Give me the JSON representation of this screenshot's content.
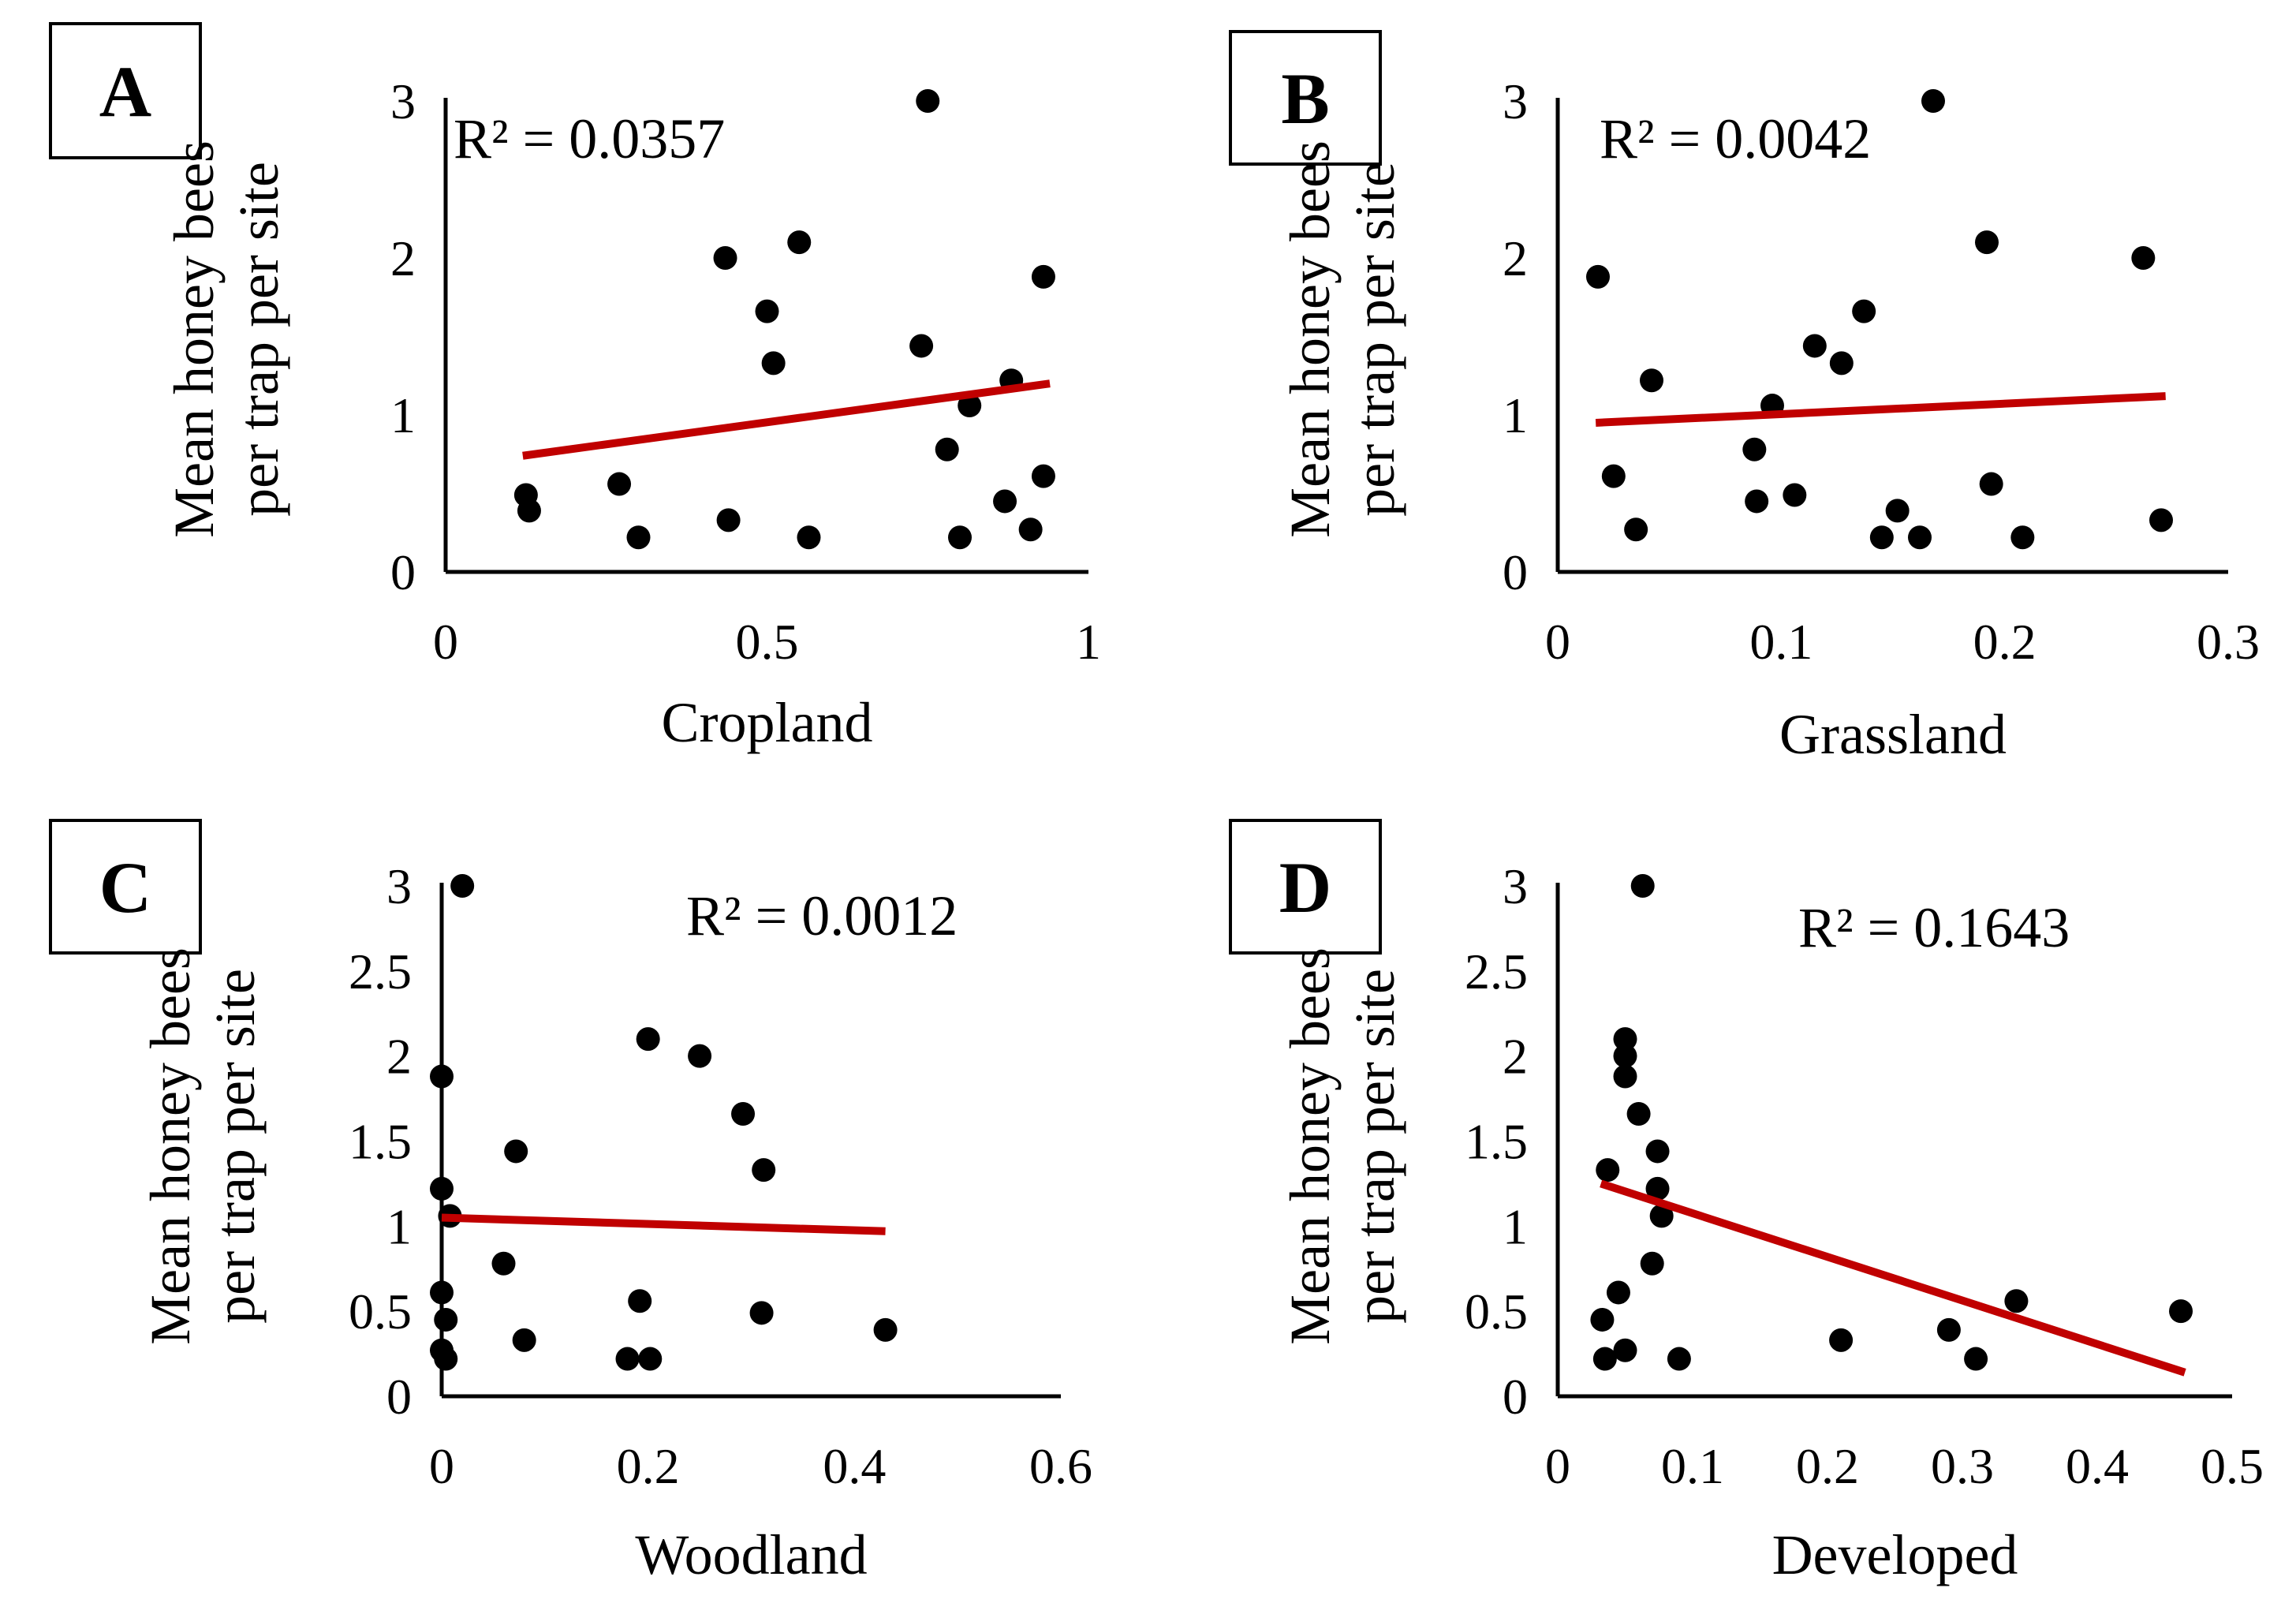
{
  "figure": {
    "panels": [
      "A",
      "B",
      "C",
      "D"
    ]
  },
  "colors": {
    "points": "#000000",
    "trendline": "#c00000",
    "axes": "#000000"
  },
  "chart_data": [
    {
      "panel": "A",
      "type": "scatter",
      "xlabel": "Cropland",
      "ylabel": [
        "Mean honey bees",
        "per trap per site"
      ],
      "annotation": "R² = 0.0357",
      "xlim": [
        0,
        1
      ],
      "ylim": [
        0,
        3
      ],
      "xticks": [
        "0",
        "0.5",
        "1"
      ],
      "xtick_values": [
        0,
        0.5,
        1
      ],
      "yticks": [
        "0",
        "1",
        "2",
        "3"
      ],
      "ytick_values": [
        0,
        1,
        2,
        3
      ],
      "trendline": {
        "x": [
          0.12,
          0.94
        ],
        "y": [
          0.74,
          1.2
        ]
      },
      "points": [
        {
          "x": 0.125,
          "y": 0.49
        },
        {
          "x": 0.13,
          "y": 0.39
        },
        {
          "x": 0.27,
          "y": 0.56
        },
        {
          "x": 0.3,
          "y": 0.22
        },
        {
          "x": 0.435,
          "y": 2.0
        },
        {
          "x": 0.44,
          "y": 0.33
        },
        {
          "x": 0.5,
          "y": 1.66
        },
        {
          "x": 0.51,
          "y": 1.33
        },
        {
          "x": 0.55,
          "y": 2.1
        },
        {
          "x": 0.565,
          "y": 0.22
        },
        {
          "x": 0.74,
          "y": 1.44
        },
        {
          "x": 0.75,
          "y": 3.0
        },
        {
          "x": 0.78,
          "y": 0.78
        },
        {
          "x": 0.8,
          "y": 0.22
        },
        {
          "x": 0.815,
          "y": 1.06
        },
        {
          "x": 0.87,
          "y": 0.45
        },
        {
          "x": 0.88,
          "y": 1.22
        },
        {
          "x": 0.91,
          "y": 0.27
        },
        {
          "x": 0.93,
          "y": 0.61
        },
        {
          "x": 0.93,
          "y": 1.88
        }
      ]
    },
    {
      "panel": "B",
      "type": "scatter",
      "xlabel": "Grassland",
      "ylabel": [
        "Mean honey bees",
        "per trap per site"
      ],
      "annotation": "R² = 0.0042",
      "xlim": [
        0,
        0.3
      ],
      "ylim": [
        0,
        3
      ],
      "xticks": [
        "0",
        "0.1",
        "0.2",
        "0.3"
      ],
      "xtick_values": [
        0,
        0.1,
        0.2,
        0.3
      ],
      "yticks": [
        "0",
        "1",
        "2",
        "3"
      ],
      "ytick_values": [
        0,
        1,
        2,
        3
      ],
      "trendline": {
        "x": [
          0.017,
          0.272
        ],
        "y": [
          0.95,
          1.12
        ]
      },
      "points": [
        {
          "x": 0.018,
          "y": 1.88
        },
        {
          "x": 0.025,
          "y": 0.61
        },
        {
          "x": 0.035,
          "y": 0.27
        },
        {
          "x": 0.042,
          "y": 1.22
        },
        {
          "x": 0.088,
          "y": 0.78
        },
        {
          "x": 0.089,
          "y": 0.45
        },
        {
          "x": 0.096,
          "y": 1.06
        },
        {
          "x": 0.106,
          "y": 0.49
        },
        {
          "x": 0.115,
          "y": 1.44
        },
        {
          "x": 0.127,
          "y": 1.33
        },
        {
          "x": 0.137,
          "y": 1.66
        },
        {
          "x": 0.145,
          "y": 0.22
        },
        {
          "x": 0.152,
          "y": 0.39
        },
        {
          "x": 0.162,
          "y": 0.22
        },
        {
          "x": 0.168,
          "y": 3.0
        },
        {
          "x": 0.192,
          "y": 2.1
        },
        {
          "x": 0.194,
          "y": 0.56
        },
        {
          "x": 0.208,
          "y": 0.22
        },
        {
          "x": 0.262,
          "y": 2.0
        },
        {
          "x": 0.27,
          "y": 0.33
        }
      ]
    },
    {
      "panel": "C",
      "type": "scatter",
      "xlabel": "Woodland",
      "ylabel": [
        "Mean honey bees",
        "per trap per site"
      ],
      "annotation": "R² = 0.0012",
      "xlim": [
        0,
        0.6
      ],
      "ylim": [
        0,
        3
      ],
      "xticks": [
        "0",
        "0.2",
        "0.4",
        "0.6"
      ],
      "xtick_values": [
        0,
        0.2,
        0.4,
        0.6
      ],
      "yticks": [
        "0",
        "0.5",
        "1",
        "1.5",
        "2",
        "2.5",
        "3"
      ],
      "ytick_values": [
        0,
        0.5,
        1,
        1.5,
        2,
        2.5,
        3
      ],
      "trendline": {
        "x": [
          0.0,
          0.43
        ],
        "y": [
          1.05,
          0.97
        ]
      },
      "points": [
        {
          "x": 0.0,
          "y": 1.88
        },
        {
          "x": 0.0,
          "y": 1.22
        },
        {
          "x": 0.0,
          "y": 0.61
        },
        {
          "x": 0.0,
          "y": 0.27
        },
        {
          "x": 0.004,
          "y": 0.45
        },
        {
          "x": 0.004,
          "y": 0.22
        },
        {
          "x": 0.008,
          "y": 1.06
        },
        {
          "x": 0.02,
          "y": 3.0
        },
        {
          "x": 0.06,
          "y": 0.78
        },
        {
          "x": 0.072,
          "y": 1.44
        },
        {
          "x": 0.08,
          "y": 0.33
        },
        {
          "x": 0.18,
          "y": 0.22
        },
        {
          "x": 0.192,
          "y": 0.56
        },
        {
          "x": 0.2,
          "y": 2.1
        },
        {
          "x": 0.202,
          "y": 0.22
        },
        {
          "x": 0.25,
          "y": 2.0
        },
        {
          "x": 0.292,
          "y": 1.66
        },
        {
          "x": 0.31,
          "y": 0.49
        },
        {
          "x": 0.312,
          "y": 1.33
        },
        {
          "x": 0.43,
          "y": 0.39
        }
      ]
    },
    {
      "panel": "D",
      "type": "scatter",
      "xlabel": "Developed",
      "ylabel": [
        "Mean honey bees",
        "per trap per site"
      ],
      "annotation": "R² = 0.1643",
      "xlim": [
        0,
        0.5
      ],
      "ylim": [
        0,
        3
      ],
      "xticks": [
        "0",
        "0.1",
        "0.2",
        "0.3",
        "0.4",
        "0.5"
      ],
      "xtick_values": [
        0,
        0.1,
        0.2,
        0.3,
        0.4,
        0.5
      ],
      "yticks": [
        "0",
        "0.5",
        "1",
        "1.5",
        "2",
        "2.5",
        "3"
      ],
      "ytick_values": [
        0,
        0.5,
        1,
        1.5,
        2,
        2.5,
        3
      ],
      "trendline": {
        "x": [
          0.032,
          0.465
        ],
        "y": [
          1.25,
          0.14
        ]
      },
      "points": [
        {
          "x": 0.033,
          "y": 0.45
        },
        {
          "x": 0.035,
          "y": 0.22
        },
        {
          "x": 0.037,
          "y": 1.33
        },
        {
          "x": 0.045,
          "y": 0.61
        },
        {
          "x": 0.05,
          "y": 0.27
        },
        {
          "x": 0.05,
          "y": 2.1
        },
        {
          "x": 0.05,
          "y": 2.0
        },
        {
          "x": 0.05,
          "y": 1.88
        },
        {
          "x": 0.06,
          "y": 1.66
        },
        {
          "x": 0.063,
          "y": 3.0
        },
        {
          "x": 0.07,
          "y": 0.78
        },
        {
          "x": 0.074,
          "y": 1.44
        },
        {
          "x": 0.074,
          "y": 1.22
        },
        {
          "x": 0.077,
          "y": 1.06
        },
        {
          "x": 0.09,
          "y": 0.22
        },
        {
          "x": 0.21,
          "y": 0.33
        },
        {
          "x": 0.29,
          "y": 0.39
        },
        {
          "x": 0.31,
          "y": 0.22
        },
        {
          "x": 0.34,
          "y": 0.56
        },
        {
          "x": 0.462,
          "y": 0.5
        }
      ]
    }
  ]
}
